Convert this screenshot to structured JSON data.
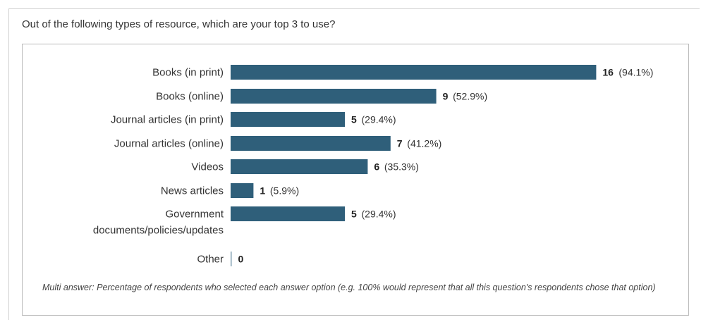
{
  "question": "Out of the following types of resource, which are your top 3 to use?",
  "footnote": "Multi answer: Percentage of respondents who selected each answer option (e.g. 100% would represent that all this question's respondents chose that option)",
  "colors": {
    "bar": "#2f5f7a",
    "text": "#333333",
    "border": "#b9b9b9"
  },
  "chart_data": {
    "type": "bar",
    "orientation": "horizontal",
    "title": "",
    "xlabel": "",
    "ylabel": "",
    "grid": false,
    "xlim": [
      0,
      17
    ],
    "categories": [
      "Books (in print)",
      "Books (online)",
      "Journal articles (in print)",
      "Journal articles (online)",
      "Videos",
      "News articles",
      [
        "Government",
        "documents/policies/updates"
      ],
      "Other"
    ],
    "values": [
      16,
      9,
      5,
      7,
      6,
      1,
      5,
      0
    ],
    "percent_labels": [
      "(94.1%)",
      "(52.9%)",
      "(29.4%)",
      "(41.2%)",
      "(35.3%)",
      "(5.9%)",
      "(29.4%)",
      ""
    ]
  }
}
